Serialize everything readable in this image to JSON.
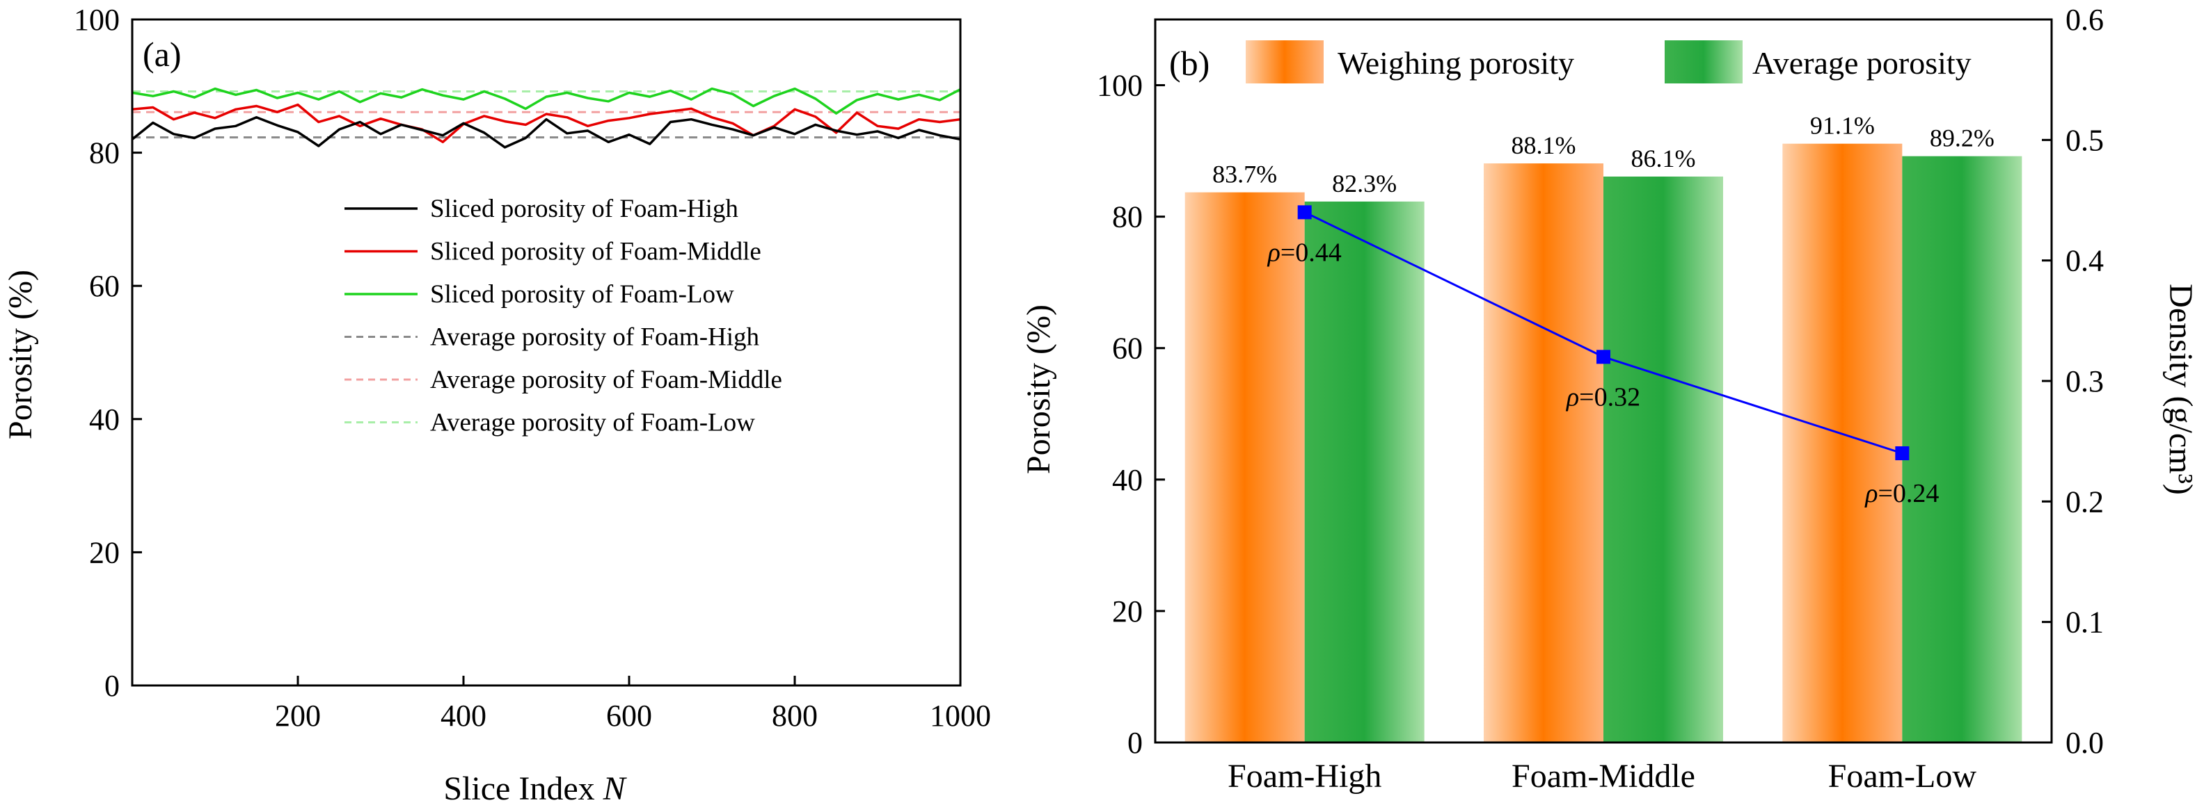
{
  "chart_data": [
    {
      "type": "line",
      "panel": "(a)",
      "xlabel": "Slice Index",
      "xlabel_var": "N",
      "ylabel": "Porosity (%)",
      "xlim": [
        0,
        1000
      ],
      "ylim": [
        0,
        100
      ],
      "x_ticks": [
        "200",
        "400",
        "600",
        "800",
        "1000"
      ],
      "x_tick_values": [
        200,
        400,
        600,
        800,
        1000
      ],
      "y_ticks": [
        "0",
        "20",
        "40",
        "60",
        "80",
        "100"
      ],
      "y_tick_values": [
        0,
        20,
        40,
        60,
        80,
        100
      ],
      "grid": false,
      "legend_position": "right-middle",
      "series": [
        {
          "name": "Sliced porosity of Foam-High",
          "color": "#000000",
          "style": "solid",
          "x": [
            0,
            25,
            50,
            75,
            100,
            125,
            150,
            175,
            200,
            225,
            250,
            275,
            300,
            325,
            350,
            375,
            400,
            425,
            450,
            475,
            500,
            525,
            550,
            575,
            600,
            625,
            650,
            675,
            700,
            725,
            750,
            775,
            800,
            825,
            850,
            875,
            900,
            925,
            950,
            975,
            1000
          ],
          "y": [
            82.0,
            84.5,
            82.8,
            82.2,
            83.6,
            84.0,
            85.3,
            84.1,
            83.1,
            81.0,
            83.5,
            84.6,
            82.8,
            84.2,
            83.4,
            82.6,
            84.4,
            83.0,
            80.8,
            82.2,
            85.0,
            82.9,
            83.3,
            81.6,
            82.7,
            81.3,
            84.6,
            85.0,
            84.2,
            83.5,
            82.6,
            83.8,
            82.8,
            84.2,
            83.3,
            82.7,
            83.2,
            82.2,
            83.4,
            82.6,
            82.0
          ]
        },
        {
          "name": "Sliced porosity of Foam-Middle",
          "color": "#e60000",
          "style": "solid",
          "x": [
            0,
            25,
            50,
            75,
            100,
            125,
            150,
            175,
            200,
            225,
            250,
            275,
            300,
            325,
            350,
            375,
            400,
            425,
            450,
            475,
            500,
            525,
            550,
            575,
            600,
            625,
            650,
            675,
            700,
            725,
            750,
            775,
            800,
            825,
            850,
            875,
            900,
            925,
            950,
            975,
            1000
          ],
          "y": [
            86.5,
            86.8,
            85.0,
            86.0,
            85.2,
            86.5,
            87.0,
            86.1,
            87.2,
            84.6,
            85.5,
            84.0,
            85.1,
            84.2,
            83.5,
            81.6,
            84.3,
            85.5,
            84.7,
            84.2,
            85.8,
            85.3,
            84.0,
            84.8,
            85.2,
            85.8,
            86.2,
            86.6,
            85.3,
            84.4,
            82.6,
            84.0,
            86.5,
            85.4,
            83.0,
            86.0,
            84.0,
            83.6,
            85.0,
            84.6,
            85.0
          ]
        },
        {
          "name": "Sliced porosity of Foam-Low",
          "color": "#1ed31e",
          "style": "solid",
          "x": [
            0,
            25,
            50,
            75,
            100,
            125,
            150,
            175,
            200,
            225,
            250,
            275,
            300,
            325,
            350,
            375,
            400,
            425,
            450,
            475,
            500,
            525,
            550,
            575,
            600,
            625,
            650,
            675,
            700,
            725,
            750,
            775,
            800,
            825,
            850,
            875,
            900,
            925,
            950,
            975,
            1000
          ],
          "y": [
            89.0,
            88.5,
            89.2,
            88.3,
            89.6,
            88.7,
            89.4,
            88.2,
            89.0,
            88.0,
            89.2,
            87.6,
            88.9,
            88.3,
            89.5,
            88.6,
            88.0,
            89.2,
            88.1,
            86.6,
            88.4,
            89.0,
            88.2,
            87.7,
            89.0,
            88.4,
            89.3,
            88.0,
            89.6,
            88.8,
            87.0,
            88.5,
            89.6,
            88.1,
            85.9,
            87.9,
            88.8,
            88.0,
            88.7,
            87.9,
            89.5
          ]
        },
        {
          "name": "Average porosity of Foam-High",
          "color": "#8a8a8a",
          "style": "dashed",
          "x": [
            0,
            1000
          ],
          "y": [
            82.3,
            82.3
          ]
        },
        {
          "name": "Average porosity of Foam-Middle",
          "color": "#f2a0a0",
          "style": "dashed",
          "x": [
            0,
            1000
          ],
          "y": [
            86.1,
            86.1
          ]
        },
        {
          "name": "Average porosity of Foam-Low",
          "color": "#a8eea8",
          "style": "dashed",
          "x": [
            0,
            1000
          ],
          "y": [
            89.2,
            89.2
          ]
        }
      ]
    },
    {
      "type": "bar",
      "panel": "(b)",
      "categories": [
        "Foam-High",
        "Foam-Middle",
        "Foam-Low"
      ],
      "ylabel": "Porosity (%)",
      "ylabel_right": "Density (g/cm³)",
      "ylim": [
        0,
        110
      ],
      "ylim_right": [
        0,
        0.6
      ],
      "y_ticks": [
        "0",
        "20",
        "40",
        "60",
        "80",
        "100"
      ],
      "y_tick_values": [
        0,
        20,
        40,
        60,
        80,
        100
      ],
      "y_ticks_right": [
        "0.0",
        "0.1",
        "0.2",
        "0.3",
        "0.4",
        "0.5",
        "0.6"
      ],
      "y_tick_values_right": [
        0,
        0.1,
        0.2,
        0.3,
        0.4,
        0.5,
        0.6
      ],
      "legend_position": "top",
      "series": [
        {
          "name": "Weighing porosity",
          "color": "#ff7a00",
          "values": [
            83.7,
            88.1,
            91.1
          ],
          "labels": [
            "83.7%",
            "88.1%",
            "91.1%"
          ]
        },
        {
          "name": "Average porosity",
          "color": "#2fb24a",
          "values": [
            82.3,
            86.1,
            89.2
          ],
          "labels": [
            "82.3%",
            "86.1%",
            "89.2%"
          ]
        }
      ],
      "density_line": {
        "color": "#0000ff",
        "values": [
          0.44,
          0.32,
          0.24
        ],
        "labels": [
          "=0.44",
          "=0.32",
          "=0.24"
        ],
        "symbol": "ρ",
        "axis": "right"
      }
    }
  ]
}
